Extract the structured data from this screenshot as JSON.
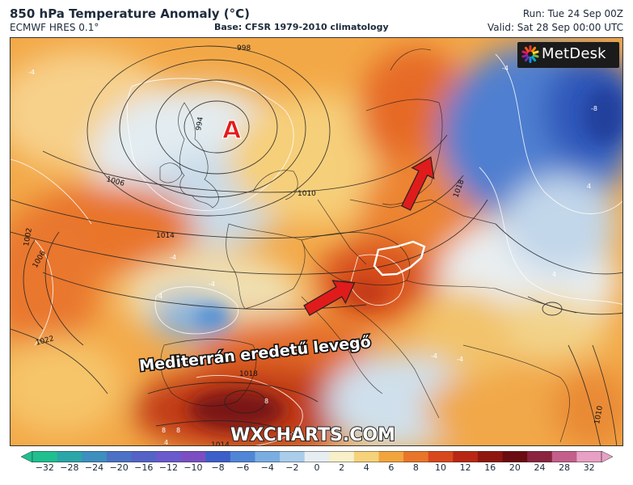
{
  "header": {
    "title": "850 hPa Temperature Anomaly (°C)",
    "model": "ECMWF HRES 0.1°",
    "base": "Base: CFSR 1979-2010 climatology",
    "run": "Run: Tue 24 Sep 00Z",
    "valid": "Valid: Sat 28 Sep 00:00 UTC"
  },
  "logo": {
    "text": "MetDesk",
    "icon": "metdesk-color-wheel-icon"
  },
  "map": {
    "watermark": "WXCHARTS.COM",
    "annotation": "Mediterrán eredetű levegő",
    "high_pressure_marker": "A",
    "arrows": [
      "arrow-north-icon",
      "arrow-northeast-icon"
    ],
    "highlighted_country_outline": "white",
    "isobar_labels": [
      "998",
      "994",
      "1006",
      "1010",
      "1014",
      "1018",
      "1002",
      "1006",
      "1022",
      "1018",
      "1010",
      "1014"
    ],
    "anomaly_labels": [
      "-4",
      "-4",
      "-4",
      "4",
      "-8",
      "4",
      "4",
      "-4",
      "8",
      "8",
      "8",
      "4",
      "-4",
      "-4"
    ]
  },
  "colorbar": {
    "ticks": [
      "−32",
      "−28",
      "−24",
      "−20",
      "−16",
      "−12",
      "−10",
      "−8",
      "−6",
      "−4",
      "−2",
      "0",
      "2",
      "4",
      "6",
      "8",
      "10",
      "12",
      "16",
      "20",
      "24",
      "28",
      "32"
    ],
    "colors": [
      "#1fbf8f",
      "#2aa6a8",
      "#3c8fbf",
      "#4b72c4",
      "#5563c7",
      "#6a5acd",
      "#7b4fc2",
      "#3d5fc9",
      "#4f86d6",
      "#7aaee2",
      "#a9cdea",
      "#e6eef2",
      "#f7f0c8",
      "#f6d27a",
      "#f2a43d",
      "#e9752a",
      "#d8481d",
      "#b82714",
      "#8f160f",
      "#6a0d12",
      "#8a2340",
      "#c45e8a",
      "#e8a0c4"
    ]
  }
}
